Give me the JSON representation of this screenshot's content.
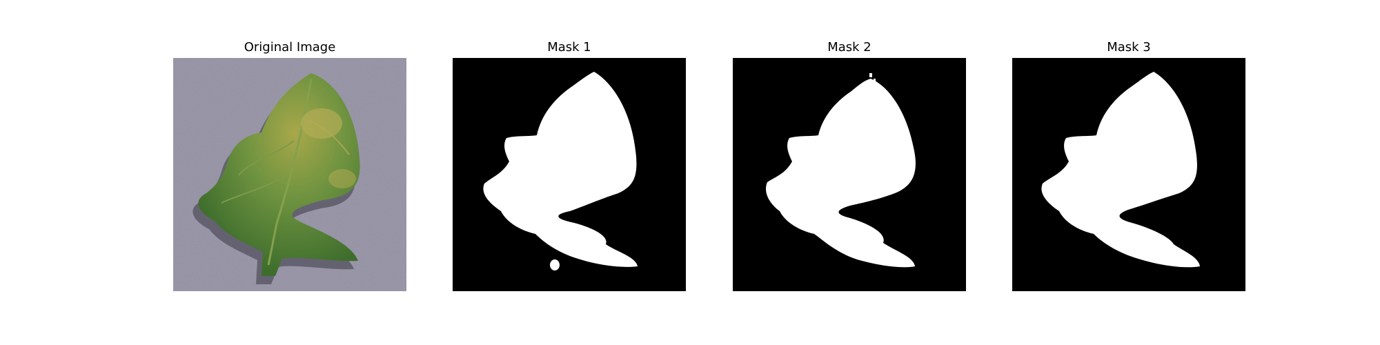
{
  "panels": [
    {
      "title": "Original Image"
    },
    {
      "title": "Mask 1"
    },
    {
      "title": "Mask 2"
    },
    {
      "title": "Mask 3"
    }
  ],
  "colors": {
    "background": "#8f8c9e",
    "leaf_dark": "#3f6f2a",
    "leaf_mid": "#5e8a38",
    "leaf_yellow": "#a9a84a",
    "mask_background": "#000000",
    "mask_foreground": "#ffffff"
  }
}
